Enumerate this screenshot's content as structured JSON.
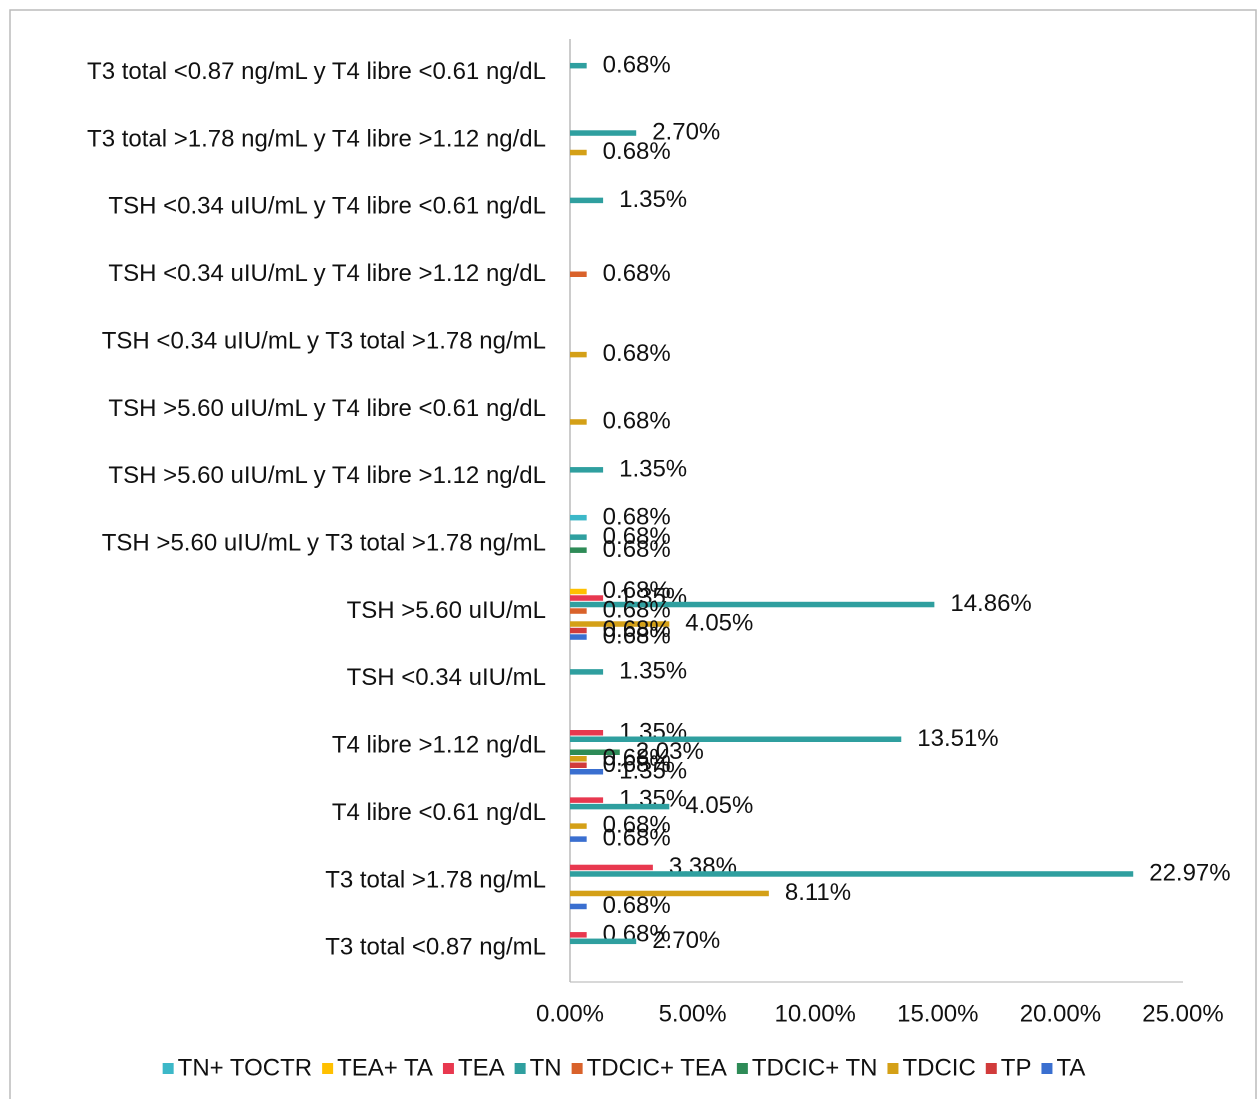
{
  "chart_data": {
    "type": "barh",
    "categories": [
      "T3 total <0.87 ng/mL y T4 libre <0.61 ng/dL",
      "T3 total  >1.78 ng/mL y T4 libre >1.12 ng/dL",
      "TSH <0.34 uIU/mL y T4 libre <0.61 ng/dL",
      "TSH <0.34 uIU/mL y T4 libre >1.12 ng/dL",
      "TSH <0.34 uIU/mL y T3 total >1.78 ng/mL",
      "TSH >5.60 uIU/mL y T4 libre  <0.61 ng/dL",
      "TSH >5.60 uIU/mL y T4 libre >1.12 ng/dL",
      "TSH >5.60 uIU/mL y T3 total >1.78 ng/mL",
      "TSH >5.60 uIU/mL",
      "TSH <0.34 uIU/mL",
      "T4 libre >1.12 ng/dL",
      "T4 libre <0.61 ng/dL",
      "T3 total >1.78 ng/mL",
      "T3 total <0.87 ng/mL"
    ],
    "series": [
      {
        "name": "TN+ TOCTR",
        "color": "#3cb8c8",
        "values": [
          null,
          null,
          null,
          null,
          null,
          null,
          null,
          0.68,
          null,
          null,
          null,
          null,
          null,
          null
        ],
        "value_labels": [
          null,
          null,
          null,
          null,
          null,
          null,
          null,
          "0.68%",
          null,
          null,
          null,
          null,
          null,
          null
        ]
      },
      {
        "name": "TEA+ TA",
        "color": "#ffc000",
        "values": [
          null,
          null,
          null,
          null,
          null,
          null,
          null,
          null,
          0.68,
          null,
          null,
          null,
          null,
          null
        ],
        "value_labels": [
          null,
          null,
          null,
          null,
          null,
          null,
          null,
          null,
          "0.68%",
          null,
          null,
          null,
          null,
          null
        ]
      },
      {
        "name": "TEA",
        "color": "#e8384f",
        "values": [
          null,
          null,
          null,
          null,
          null,
          null,
          null,
          null,
          1.35,
          null,
          1.35,
          1.35,
          3.38,
          0.68
        ],
        "value_labels": [
          null,
          null,
          null,
          null,
          null,
          null,
          null,
          null,
          "1.35%",
          null,
          "1.35%",
          "1.35%",
          "3.38%",
          "0.68%"
        ]
      },
      {
        "name": "TN",
        "color": "#2f9f9f",
        "values": [
          0.68,
          2.7,
          1.35,
          null,
          null,
          null,
          1.35,
          0.68,
          14.86,
          1.35,
          13.51,
          4.05,
          22.97,
          2.7
        ],
        "value_labels": [
          "0.68%",
          "2.70%",
          "1.35%",
          null,
          null,
          null,
          "1.35%",
          "0.68%",
          "14.86%",
          "1.35%",
          "13.51%",
          "4.05%",
          "22.97%",
          "2.70%"
        ]
      },
      {
        "name": "TDCIC+ TEA",
        "color": "#d9622b",
        "values": [
          null,
          null,
          null,
          0.68,
          null,
          null,
          null,
          null,
          0.68,
          null,
          null,
          null,
          null,
          null
        ],
        "value_labels": [
          null,
          null,
          null,
          "0.68%",
          null,
          null,
          null,
          null,
          "0.68%",
          null,
          null,
          null,
          null,
          null
        ]
      },
      {
        "name": "TDCIC+ TN",
        "color": "#2e8b57",
        "values": [
          null,
          null,
          null,
          null,
          null,
          null,
          null,
          0.68,
          null,
          null,
          2.03,
          null,
          null,
          null
        ],
        "value_labels": [
          null,
          null,
          null,
          null,
          null,
          null,
          null,
          "0.68%",
          null,
          null,
          "2.03%",
          null,
          null,
          null
        ]
      },
      {
        "name": "TDCIC",
        "color": "#d4a017",
        "values": [
          null,
          0.68,
          null,
          null,
          0.68,
          0.68,
          null,
          null,
          4.05,
          null,
          0.68,
          0.68,
          8.11,
          null
        ],
        "value_labels": [
          null,
          "0.68%",
          null,
          null,
          "0.68%",
          "0.68%",
          null,
          null,
          "4.05%",
          null,
          "0.68%",
          "0.68%",
          "8.11%",
          null
        ]
      },
      {
        "name": "TP",
        "color": "#d13b3b",
        "values": [
          null,
          null,
          null,
          null,
          null,
          null,
          null,
          null,
          0.68,
          null,
          0.68,
          null,
          null,
          null
        ],
        "value_labels": [
          null,
          null,
          null,
          null,
          null,
          null,
          null,
          null,
          "0.68%",
          null,
          "0.68%",
          null,
          null,
          null
        ]
      },
      {
        "name": "TA",
        "color": "#3a6fd0",
        "values": [
          null,
          null,
          null,
          null,
          null,
          null,
          null,
          null,
          0.68,
          null,
          1.35,
          0.68,
          0.68,
          null
        ],
        "value_labels": [
          null,
          null,
          null,
          null,
          null,
          null,
          null,
          null,
          "0.68%",
          null,
          "1.35%",
          "0.68%",
          "0.68%",
          null
        ]
      }
    ],
    "xlim": [
      0,
      25
    ],
    "xticks": [
      {
        "value": 0,
        "label": "0.00%"
      },
      {
        "value": 5,
        "label": "5.00%"
      },
      {
        "value": 10,
        "label": "10.00%"
      },
      {
        "value": 15,
        "label": "15.00%"
      },
      {
        "value": 20,
        "label": "20.00%"
      },
      {
        "value": 25,
        "label": "25.00%"
      }
    ],
    "legend": "bottom"
  }
}
